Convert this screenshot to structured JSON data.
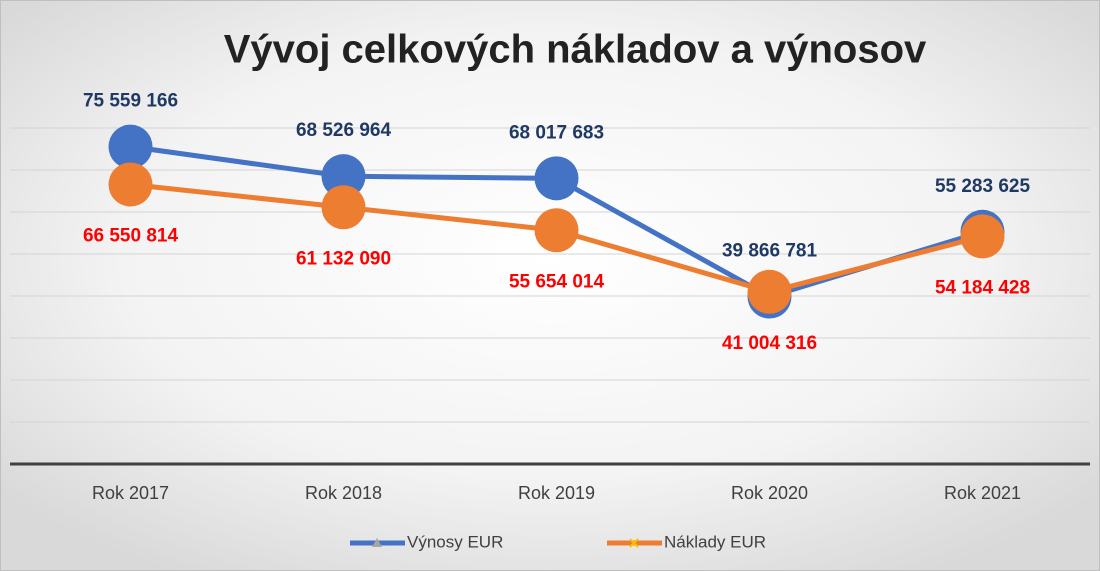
{
  "chart_data": {
    "type": "line",
    "title": "Vývoj celkových nákladov a výnosov",
    "categories": [
      "Rok 2017",
      "Rok 2018",
      "Rok 2019",
      "Rok 2020",
      "Rok 2021"
    ],
    "series": [
      {
        "name": "Výnosy EUR",
        "color": "#4472c4",
        "values": [
          75559166,
          68526964,
          68017683,
          39866781,
          55283625
        ],
        "value_labels": [
          "75 559 166",
          "68 526 964",
          "68 017 683",
          "39 866 781",
          "55 283 625"
        ]
      },
      {
        "name": "Náklady EUR",
        "color": "#ed7d31",
        "values": [
          66550814,
          61132090,
          55654014,
          41004316,
          54184428
        ],
        "value_labels": [
          "66 550 814",
          "61 132 090",
          "55 654 014",
          "41 004 316",
          "54 184 428"
        ]
      }
    ],
    "ylim": [
      0,
      80000000
    ],
    "yticks": [
      0,
      10000000,
      20000000,
      30000000,
      40000000,
      50000000,
      60000000,
      70000000,
      80000000
    ],
    "grid": true,
    "legend": "bottom"
  }
}
